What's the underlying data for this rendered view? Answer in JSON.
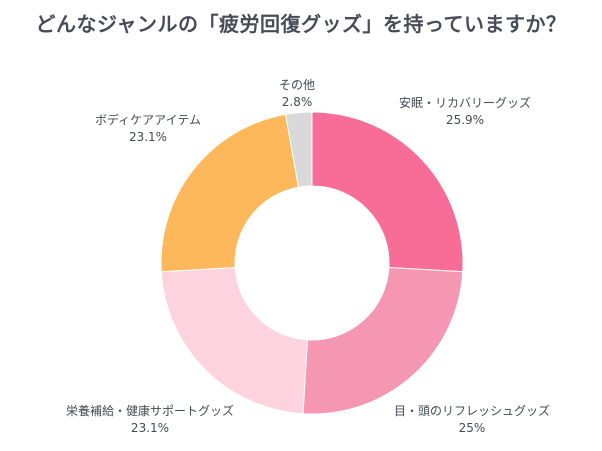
{
  "chart_data": {
    "type": "pie",
    "donut": true,
    "title": "どんなジャンルの「疲労回復グッズ」を持っていますか？",
    "slices": [
      {
        "label": "安眠・リカバリーグッズ",
        "value": 25.9,
        "value_label": "25.9%",
        "color": "#f86d97"
      },
      {
        "label": "目・頭のリフレッシュグッズ",
        "value": 25,
        "value_label": "25%",
        "color": "#f596b3"
      },
      {
        "label": "栄養補給・健康サポートグッズ",
        "value": 23.1,
        "value_label": "23.1%",
        "color": "#fdd3e0"
      },
      {
        "label": "ボディケアアイテム",
        "value": 23.1,
        "value_label": "23.1%",
        "color": "#fcb85a"
      },
      {
        "label": "その他",
        "value": 2.8,
        "value_label": "2.8%",
        "color": "#d9d9d9"
      }
    ],
    "start_angle": "12 o'clock",
    "direction": "clockwise",
    "legend": "none"
  }
}
